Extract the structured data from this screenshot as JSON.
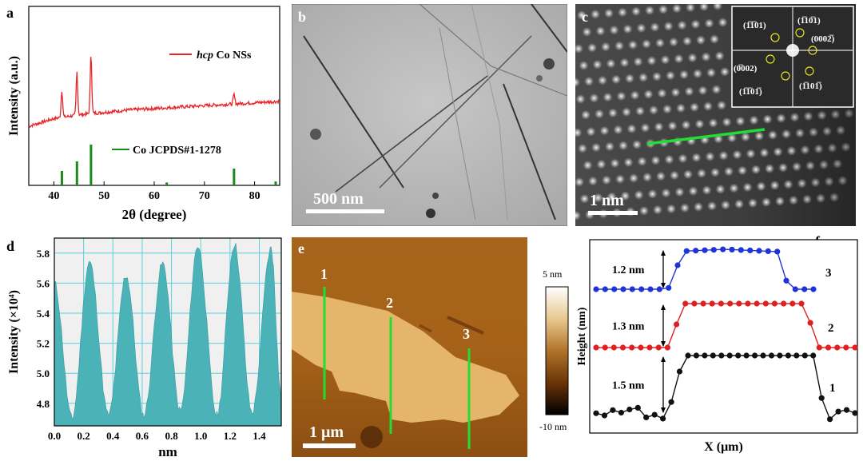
{
  "panels": {
    "a": {
      "letter": "a"
    },
    "b": {
      "letter": "b",
      "scalebar": "500 nm"
    },
    "c": {
      "letter": "c",
      "scalebar": "1 nm",
      "fft_labels": [
        "(1̅1̅01)",
        "(1̅10̅1)",
        "(0002̅)",
        "(0̅002)",
        "(1̅1̅01̅)",
        "(1̅101̅)"
      ]
    },
    "d": {
      "letter": "d"
    },
    "e": {
      "letter": "e",
      "scalebar": "1 μm",
      "line_labels": [
        "1",
        "2",
        "3"
      ],
      "colorbar_top": "5 nm",
      "colorbar_bottom": "-10 nm"
    },
    "f": {
      "letter": "f"
    }
  },
  "colors": {
    "xrd_red": "#e8262a",
    "xrd_green": "#1a8a1a",
    "profile_teal": "#4bb3b8",
    "grid_cyan": "#5ad0e0",
    "green_line": "#22dd33",
    "f_blue": "#1f33d8",
    "f_red": "#e02020",
    "f_black": "#111111"
  },
  "chart_data": [
    {
      "id": "a",
      "type": "line",
      "xlabel": "2θ (degree)",
      "ylabel": "Intensity (a.u.)",
      "xlim": [
        35,
        85
      ],
      "xticks": [
        40,
        50,
        60,
        70,
        80
      ],
      "series": [
        {
          "name": "hcp Co NSs",
          "name_italic": "hcp",
          "name_rest": " Co NSs",
          "baseline": [
            [
              35,
              0.0
            ],
            [
              40,
              0.08
            ],
            [
              45,
              0.12
            ],
            [
              55,
              0.17
            ],
            [
              65,
              0.2
            ],
            [
              75,
              0.23
            ],
            [
              85,
              0.26
            ]
          ],
          "peaks": [
            [
              41.6,
              0.28
            ],
            [
              44.6,
              0.45
            ],
            [
              47.4,
              0.62
            ],
            [
              75.9,
              0.1
            ]
          ]
        },
        {
          "name": "Co JCPDS#1-1278",
          "sticks": [
            [
              41.6,
              0.3
            ],
            [
              44.6,
              0.5
            ],
            [
              47.4,
              0.85
            ],
            [
              62.5,
              0.06
            ],
            [
              75.9,
              0.35
            ],
            [
              84.2,
              0.08
            ]
          ]
        }
      ]
    },
    {
      "id": "d",
      "type": "area",
      "xlabel": "nm",
      "ylabel": "Intensity (×10⁴)",
      "xlim": [
        0,
        1.55
      ],
      "ylim": [
        4.65,
        5.9
      ],
      "xticks": [
        0.0,
        0.2,
        0.4,
        0.6,
        0.8,
        1.0,
        1.2,
        1.4
      ],
      "yticks": [
        4.8,
        5.0,
        5.2,
        5.4,
        5.6,
        5.8
      ],
      "grid": true,
      "x": [
        0.0,
        0.12,
        0.24,
        0.37,
        0.49,
        0.61,
        0.74,
        0.86,
        0.98,
        1.11,
        1.23,
        1.35,
        1.48,
        1.55
      ],
      "y": [
        5.6,
        4.7,
        5.74,
        4.72,
        5.65,
        4.72,
        5.73,
        4.75,
        5.85,
        4.72,
        5.86,
        4.74,
        5.83,
        4.85
      ]
    },
    {
      "id": "f",
      "type": "line",
      "xlabel": "X (μm)",
      "ylabel": "Height (nm)",
      "annotations": [
        "1.2 nm",
        "1.3 nm",
        "1.5 nm"
      ],
      "series": [
        {
          "name": "3",
          "color": "#1f33d8",
          "step_nm": 1.2
        },
        {
          "name": "2",
          "color": "#e02020",
          "step_nm": 1.3
        },
        {
          "name": "1",
          "color": "#111111",
          "step_nm": 1.5
        }
      ]
    }
  ]
}
